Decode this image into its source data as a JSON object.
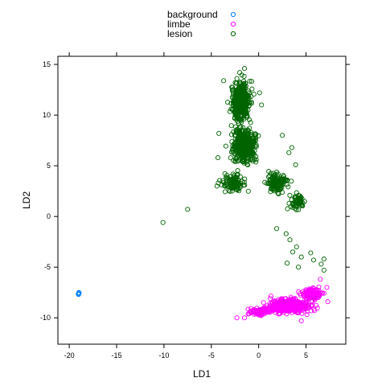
{
  "chart_data": {
    "type": "scatter",
    "title": "",
    "xlabel": "LD1",
    "ylabel": "LD2",
    "xlim": [
      -21.2,
      9.2
    ],
    "ylim": [
      -12.6,
      15.8
    ],
    "x_ticks": [
      -20,
      -15,
      -10,
      -5,
      0,
      5
    ],
    "y_ticks": [
      -10,
      -5,
      0,
      5,
      10,
      15
    ],
    "grid": false,
    "legend_position": "top",
    "series": [
      {
        "name": "background",
        "color": "#0080ff",
        "marker": "open-circle",
        "points": [
          [
            -19,
            -7.6
          ],
          [
            -18.95,
            -7.55
          ],
          [
            -19.05,
            -7.65
          ],
          [
            -18.98,
            -7.5
          ],
          [
            -19.02,
            -7.7
          ]
        ]
      },
      {
        "name": "limbe",
        "color": "#ff00ff",
        "marker": "open-circle",
        "clusters": [
          {
            "center": [
              3.2,
              -8.8
            ],
            "spread": [
              2.0,
              0.55
            ],
            "count": 420
          },
          {
            "center": [
              5.6,
              -7.7
            ],
            "spread": [
              0.9,
              0.5
            ],
            "count": 120
          },
          {
            "center": [
              0.3,
              -9.4
            ],
            "spread": [
              1.0,
              0.35
            ],
            "count": 90
          }
        ],
        "points": [
          [
            -2.3,
            -10.0
          ],
          [
            -1.5,
            -10.0
          ],
          [
            -1.0,
            -9.6
          ],
          [
            -0.5,
            -9.2
          ],
          [
            6.5,
            -6.2
          ],
          [
            7.2,
            -7.0
          ],
          [
            7.3,
            -8.4
          ],
          [
            4.5,
            -10.3
          ]
        ]
      },
      {
        "name": "lesion",
        "color": "#006400",
        "marker": "open-circle",
        "clusters": [
          {
            "center": [
              -1.9,
              11.3
            ],
            "spread": [
              0.8,
              1.6
            ],
            "count": 420
          },
          {
            "center": [
              -1.5,
              7.0
            ],
            "spread": [
              1.1,
              1.4
            ],
            "count": 460
          },
          {
            "center": [
              -2.7,
              3.3
            ],
            "spread": [
              1.0,
              0.8
            ],
            "count": 110
          },
          {
            "center": [
              2.0,
              3.3
            ],
            "spread": [
              0.9,
              0.8
            ],
            "count": 130
          },
          {
            "center": [
              4.0,
              1.5
            ],
            "spread": [
              0.6,
              0.6
            ],
            "count": 60
          }
        ],
        "points": [
          [
            -10.1,
            -0.6
          ],
          [
            -7.5,
            0.7
          ],
          [
            -3.9,
            3.1
          ],
          [
            -4.4,
            3.0
          ],
          [
            1.9,
            -1.2
          ],
          [
            2.9,
            -1.7
          ],
          [
            3.3,
            -2.3
          ],
          [
            4.0,
            -3.0
          ],
          [
            3.6,
            -3.5
          ],
          [
            4.5,
            -4.0
          ],
          [
            5.5,
            -3.6
          ],
          [
            5.8,
            -4.3
          ],
          [
            6.9,
            -4.2
          ],
          [
            6.6,
            -4.7
          ],
          [
            3.0,
            -4.6
          ],
          [
            6.9,
            -5.3
          ],
          [
            4.2,
            -5.0
          ],
          [
            3.2,
            6.3
          ],
          [
            3.5,
            6.8
          ],
          [
            3.9,
            5.1
          ],
          [
            -1.5,
            14.6
          ],
          [
            -2.3,
            13.6
          ],
          [
            -3.7,
            13.4
          ],
          [
            0.1,
            12.2
          ],
          [
            0.3,
            11.0
          ],
          [
            -4.2,
            8.2
          ],
          [
            -4.3,
            5.8
          ],
          [
            2.5,
            8.0
          ],
          [
            -2.0,
            14.2
          ]
        ]
      }
    ]
  }
}
